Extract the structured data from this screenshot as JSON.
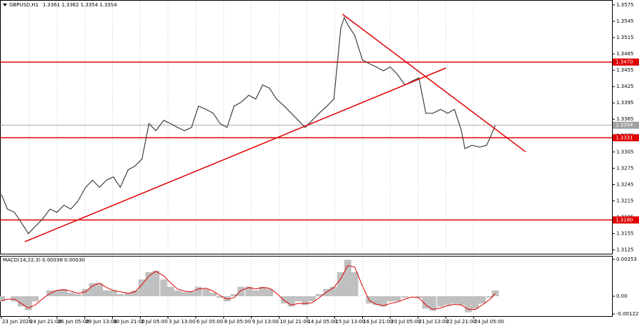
{
  "chart_data": [
    {
      "type": "line",
      "title": "GBPUSD,H1",
      "subtitle": "1.3361 1.3362 1.3354 1.3354",
      "x": [
        0,
        7,
        15,
        23,
        31,
        39,
        47,
        56,
        64,
        72,
        80,
        88,
        97,
        105,
        113,
        121,
        129,
        137,
        146,
        154,
        162,
        170,
        178,
        187,
        195,
        203,
        211,
        219,
        227,
        236,
        244,
        252,
        260,
        268,
        276,
        285,
        293,
        301,
        309,
        317,
        326,
        334,
        342,
        350,
        358,
        366,
        375,
        383,
        387,
        391,
        395,
        399,
        407,
        416,
        424,
        432,
        440,
        448,
        456,
        465,
        473,
        481,
        489,
        497,
        506,
        514,
        522,
        530,
        534,
        542,
        551,
        559,
        563,
        569
      ],
      "values": [
        1.3227,
        1.32,
        1.3194,
        1.3175,
        1.3155,
        1.3168,
        1.3181,
        1.32,
        1.3194,
        1.3207,
        1.32,
        1.3214,
        1.324,
        1.3253,
        1.324,
        1.3253,
        1.3259,
        1.324,
        1.3272,
        1.3279,
        1.3292,
        1.3357,
        1.3344,
        1.3363,
        1.3357,
        1.335,
        1.3344,
        1.335,
        1.3389,
        1.3383,
        1.3376,
        1.3357,
        1.335,
        1.3389,
        1.3396,
        1.3409,
        1.3402,
        1.3428,
        1.3422,
        1.3402,
        1.3389,
        1.3376,
        1.3363,
        1.335,
        1.3363,
        1.3376,
        1.3389,
        1.3402,
        1.3467,
        1.3532,
        1.3552,
        1.3539,
        1.3519,
        1.3474,
        1.3467,
        1.3461,
        1.3454,
        1.3461,
        1.3448,
        1.3428,
        1.3435,
        1.3441,
        1.3376,
        1.3376,
        1.3383,
        1.3376,
        1.3383,
        1.3344,
        1.3311,
        1.3317,
        1.3314,
        1.3317,
        1.3331,
        1.3354
      ],
      "color": "#404040",
      "xlim": [
        -1.6,
        703.5
      ],
      "xticks": [
        {
          "value": 0,
          "label": "23 Jun 2026"
        },
        {
          "value": 32,
          "label": "24 Jun 21:00"
        },
        {
          "value": 64,
          "label": "26 Jun 05:00"
        },
        {
          "value": 96,
          "label": "29 Jun 13:00"
        },
        {
          "value": 128,
          "label": "30 Jun 21:00"
        },
        {
          "value": 160,
          "label": "2 Jul 05:00"
        },
        {
          "value": 192,
          "label": "3 Jul 13:00"
        },
        {
          "value": 224,
          "label": "6 Jul 05:00"
        },
        {
          "value": 256,
          "label": "8 Jul 05:00"
        },
        {
          "value": 288,
          "label": "9 Jul 13:00"
        },
        {
          "value": 320,
          "label": "10 Jul 21:00"
        },
        {
          "value": 352,
          "label": "14 Jul 05:00"
        },
        {
          "value": 384,
          "label": "15 Jul 13:00"
        },
        {
          "value": 416,
          "label": "16 Jul 21:00"
        },
        {
          "value": 448,
          "label": "20 Jul 05:00"
        },
        {
          "value": 480,
          "label": "21 Jul 13:00"
        },
        {
          "value": 512,
          "label": "22 Jul 21:00"
        },
        {
          "value": 544,
          "label": "24 Jul 05:00"
        }
      ],
      "ylim": [
        1.3118,
        1.3584
      ],
      "yticks": [
        1.3575,
        1.3545,
        1.3515,
        1.3485,
        1.3455,
        1.3425,
        1.3395,
        1.3365,
        1.3335,
        1.3305,
        1.3275,
        1.3245,
        1.3215,
        1.3185,
        1.3155,
        1.3125
      ],
      "grid": true,
      "levels": [
        {
          "value": 1.347,
          "label": "1.3470"
        },
        {
          "value": 1.3331,
          "label": "1.3331"
        },
        {
          "value": 1.318,
          "label": "1.3180"
        }
      ],
      "level_color": "#e00000",
      "current": 1.3354,
      "current_color": "#a0a0a0",
      "trendlines": [
        {
          "x": [
            27,
            512
          ],
          "y": [
            1.314,
            1.3459
          ]
        },
        {
          "x": [
            393,
            604
          ],
          "y": [
            1.3558,
            1.3305
          ]
        }
      ],
      "trendline_color": "#e00000"
    },
    {
      "type": "macd",
      "title": "MACD(14,22,3) 0.00038 0.00030",
      "x": [
        0,
        7,
        15,
        23,
        31,
        39,
        47,
        56,
        64,
        72,
        80,
        88,
        97,
        105,
        113,
        121,
        129,
        137,
        146,
        154,
        162,
        170,
        178,
        187,
        195,
        203,
        211,
        219,
        227,
        236,
        244,
        252,
        260,
        268,
        276,
        285,
        293,
        301,
        309,
        317,
        326,
        334,
        342,
        350,
        358,
        366,
        375,
        383,
        391,
        399,
        407,
        416,
        424,
        432,
        440,
        448,
        456,
        465,
        473,
        481,
        489,
        497,
        506,
        514,
        522,
        530,
        538,
        546,
        554,
        563,
        569
      ],
      "series": [
        {
          "color": "#c0c0c0",
          "values": [
            -0.00035,
            0,
            -0.00035,
            -0.0007,
            -0.00095,
            -0.00035,
            0,
            0.0004,
            0.0004,
            0.0005,
            0.00025,
            0.00015,
            0.0005,
            0.0009,
            0.0009,
            0.0004,
            0.0004,
            0.00015,
            0.00025,
            0.0004,
            0.00115,
            0.00165,
            0.00175,
            0.00115,
            0.00065,
            0.0004,
            0.0003,
            0.0003,
            0.00065,
            0.0005,
            0.00025,
            -0.0001,
            -0.00035,
            0.00015,
            0.00065,
            0.00065,
            0.0004,
            0.00065,
            0.0005,
            0,
            -0.0005,
            -0.0007,
            -0.00035,
            -0.0006,
            -0.00035,
            0.00015,
            0.0005,
            0.00065,
            0.00165,
            0.0025,
            0.00165,
            0,
            -0.0005,
            -0.0006,
            -0.0007,
            -0.00035,
            -0.00035,
            -0.0001,
            0,
            -0.0001,
            -0.00085,
            -0.001,
            -0.0007,
            -0.0006,
            -0.0005,
            -0.0006,
            -0.0011,
            -0.00085,
            -0.0005,
            -0.0001,
            0.0004
          ]
        },
        {
          "color": "#e00000",
          "values": [
            -0.0003,
            -0.0002,
            -0.0002,
            -0.0005,
            -0.0008,
            -0.0006,
            -0.0002,
            0.0002,
            0.0004,
            0.00045,
            0.00035,
            0.0002,
            0.0003,
            0.0007,
            0.0009,
            0.0006,
            0.0004,
            0.0003,
            0.0002,
            0.0003,
            0.0008,
            0.0014,
            0.0017,
            0.0014,
            0.0009,
            0.0005,
            0.00035,
            0.0003,
            0.0005,
            0.00055,
            0.00035,
            5e-05,
            -0.0002,
            -0.0001,
            0.0004,
            0.0006,
            0.0005,
            0.0006,
            0.00055,
            0.0002,
            -0.0003,
            -0.0006,
            -0.0005,
            -0.0005,
            -0.00045,
            -0.0001,
            0.0003,
            0.0006,
            0.0012,
            0.0021,
            0.002,
            0.0007,
            -0.0003,
            -0.00055,
            -0.00065,
            -0.0005,
            -0.0004,
            -0.0002,
            -5e-05,
            -0.0001,
            -0.0006,
            -0.0009,
            -0.0008,
            -0.00065,
            -0.00055,
            -0.0006,
            -0.0009,
            -0.0009,
            -0.0006,
            -0.0002,
            0.0002
          ]
        }
      ],
      "xlim": [
        -1.6,
        703.5
      ],
      "ylim": [
        -0.00136,
        0.00277
      ],
      "yticks": [
        0.00253,
        {
          "value": 0,
          "label": "0.00"
        },
        -0.00122
      ]
    }
  ]
}
